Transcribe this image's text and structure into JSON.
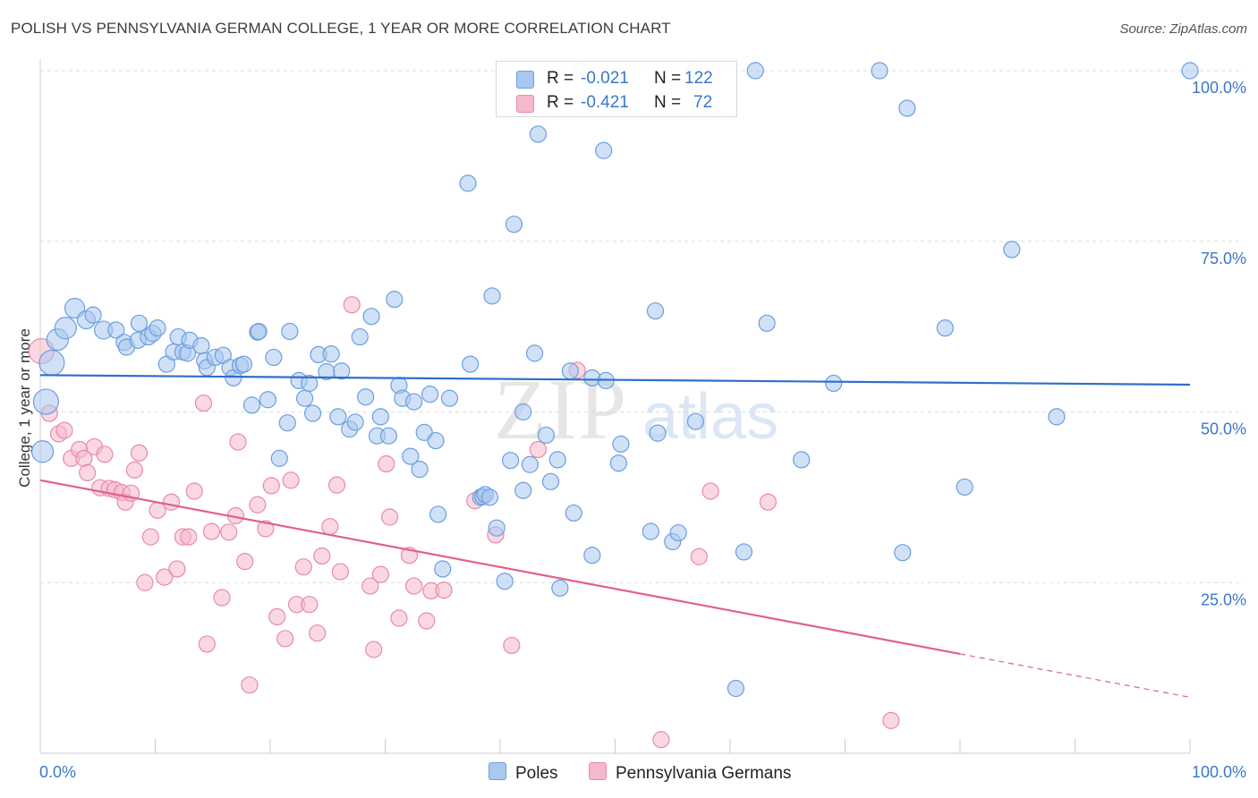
{
  "title": "POLISH VS PENNSYLVANIA GERMAN COLLEGE, 1 YEAR OR MORE CORRELATION CHART",
  "source": "Source: ZipAtlas.com",
  "watermark": {
    "zip": "ZIP",
    "atlas": "atlas"
  },
  "legend_top": {
    "rows": [
      {
        "r_label": "R =",
        "r_value": "-0.021",
        "n_label": "N =",
        "n_value": "122",
        "color": "#a9c8f0"
      },
      {
        "r_label": "R =",
        "r_value": "-0.421",
        "n_label": "N =",
        "n_value": "72",
        "color": "#f6b8cb"
      }
    ]
  },
  "legend_bottom": {
    "items": [
      {
        "label": "Poles",
        "color": "#a9c8f0"
      },
      {
        "label": "Pennsylvania Germans",
        "color": "#f6b8cb"
      }
    ]
  },
  "colors": {
    "poles_fill": "#a9c8f0",
    "poles_stroke": "#6b9ee0",
    "poles_line": "#2e6fcc",
    "pg_fill": "#f6b8cb",
    "pg_stroke": "#e88aa8",
    "pg_line": "#e0608c",
    "tick_text": "#3a78c9",
    "grid": "#dddddd"
  },
  "chart_data": {
    "type": "scatter",
    "title": "POLISH VS PENNSYLVANIA GERMAN COLLEGE, 1 YEAR OR MORE CORRELATION CHART",
    "xlabel": "",
    "ylabel": "College, 1 year or more",
    "xlim": [
      0,
      100
    ],
    "ylim": [
      0,
      100
    ],
    "x_tick_labels": [
      "0.0%",
      "100.0%"
    ],
    "y_tick_labels": [
      "25.0%",
      "50.0%",
      "75.0%",
      "100.0%"
    ],
    "y_ticks": [
      25,
      50,
      75,
      100
    ],
    "grid": true,
    "legend_position": "bottom",
    "series": [
      {
        "name": "Poles",
        "R": -0.021,
        "N": 122,
        "trend": {
          "x": [
            0,
            100
          ],
          "y": [
            55.4,
            54.0
          ],
          "dashed_from": null
        },
        "points": [
          [
            0.2,
            44.2,
            12
          ],
          [
            0.5,
            51.5,
            14
          ],
          [
            1.0,
            57.2,
            14
          ],
          [
            1.5,
            60.6,
            12
          ],
          [
            2.2,
            62.3,
            12
          ],
          [
            3.0,
            65.2,
            11
          ],
          [
            4.0,
            63.5,
            10
          ],
          [
            4.6,
            64.2,
            9
          ],
          [
            5.5,
            62.0,
            10
          ],
          [
            6.6,
            62.0,
            9
          ],
          [
            7.3,
            60.2,
            9
          ],
          [
            7.5,
            59.5,
            9
          ],
          [
            8.5,
            60.5,
            9
          ],
          [
            8.6,
            63.0,
            9
          ],
          [
            9.4,
            61.0,
            9
          ],
          [
            9.8,
            61.5,
            9
          ],
          [
            10.2,
            62.3,
            9
          ],
          [
            11.0,
            57.0,
            9
          ],
          [
            11.6,
            58.8,
            9
          ],
          [
            12.0,
            61.0,
            9
          ],
          [
            12.4,
            58.8,
            9
          ],
          [
            12.8,
            58.6,
            9
          ],
          [
            13.0,
            60.5,
            9
          ],
          [
            14.0,
            59.7,
            9
          ],
          [
            14.3,
            57.5,
            9
          ],
          [
            14.5,
            56.5,
            9
          ],
          [
            15.2,
            58.0,
            9
          ],
          [
            15.9,
            58.3,
            9
          ],
          [
            16.5,
            56.5,
            9
          ],
          [
            16.8,
            55.0,
            9
          ],
          [
            17.4,
            56.8,
            9
          ],
          [
            17.7,
            57.0,
            9
          ],
          [
            18.4,
            51.0,
            9
          ],
          [
            18.9,
            61.7,
            9
          ],
          [
            19.0,
            61.8,
            9
          ],
          [
            19.8,
            51.8,
            9
          ],
          [
            20.3,
            58.0,
            9
          ],
          [
            20.8,
            43.2,
            9
          ],
          [
            21.5,
            48.4,
            9
          ],
          [
            21.7,
            61.8,
            9
          ],
          [
            22.5,
            54.6,
            9
          ],
          [
            23.0,
            52.0,
            9
          ],
          [
            23.4,
            54.2,
            9
          ],
          [
            23.7,
            49.8,
            9
          ],
          [
            24.2,
            58.4,
            9
          ],
          [
            24.9,
            55.9,
            9
          ],
          [
            25.3,
            58.5,
            9
          ],
          [
            25.9,
            49.3,
            9
          ],
          [
            26.2,
            56.0,
            9
          ],
          [
            26.9,
            47.5,
            9
          ],
          [
            27.4,
            48.5,
            9
          ],
          [
            27.8,
            61.0,
            9
          ],
          [
            28.3,
            52.2,
            9
          ],
          [
            28.8,
            64.0,
            9
          ],
          [
            29.3,
            46.5,
            9
          ],
          [
            29.6,
            49.3,
            9
          ],
          [
            30.3,
            46.5,
            9
          ],
          [
            30.8,
            66.5,
            9
          ],
          [
            31.2,
            53.9,
            9
          ],
          [
            31.5,
            52.0,
            9
          ],
          [
            32.2,
            43.5,
            9
          ],
          [
            32.5,
            51.5,
            9
          ],
          [
            33.0,
            41.6,
            9
          ],
          [
            33.4,
            47.0,
            9
          ],
          [
            33.9,
            52.6,
            9
          ],
          [
            34.4,
            45.8,
            9
          ],
          [
            34.6,
            35.0,
            9
          ],
          [
            35.0,
            27.0,
            9
          ],
          [
            35.6,
            52.0,
            9
          ],
          [
            37.2,
            83.5,
            9
          ],
          [
            37.4,
            57.0,
            9
          ],
          [
            38.3,
            37.5,
            9
          ],
          [
            38.5,
            37.6,
            9
          ],
          [
            38.7,
            37.9,
            9
          ],
          [
            39.1,
            37.5,
            9
          ],
          [
            39.3,
            67.0,
            9
          ],
          [
            39.7,
            33.0,
            9
          ],
          [
            40.4,
            25.2,
            9
          ],
          [
            40.9,
            42.9,
            9
          ],
          [
            41.2,
            77.5,
            9
          ],
          [
            42.0,
            38.5,
            9
          ],
          [
            42.0,
            50.0,
            9
          ],
          [
            42.6,
            42.3,
            9
          ],
          [
            43.0,
            58.6,
            9
          ],
          [
            43.3,
            90.7,
            9
          ],
          [
            44.0,
            46.6,
            9
          ],
          [
            44.4,
            39.8,
            9
          ],
          [
            45.0,
            43.0,
            9
          ],
          [
            45.2,
            24.2,
            9
          ],
          [
            46.1,
            56.0,
            9
          ],
          [
            46.4,
            35.2,
            9
          ],
          [
            47.0,
            100.0,
            9
          ],
          [
            48.0,
            29.0,
            9
          ],
          [
            48.0,
            55.0,
            9
          ],
          [
            49.0,
            88.3,
            9
          ],
          [
            49.2,
            54.6,
            9
          ],
          [
            50.3,
            42.5,
            9
          ],
          [
            50.5,
            45.3,
            9
          ],
          [
            53.1,
            32.5,
            9
          ],
          [
            53.5,
            64.8,
            9
          ],
          [
            53.7,
            46.9,
            9
          ],
          [
            55.0,
            31.0,
            9
          ],
          [
            55.5,
            32.3,
            9
          ],
          [
            57.0,
            48.6,
            9
          ],
          [
            57.0,
            100.0,
            9
          ],
          [
            60.5,
            9.5,
            9
          ],
          [
            61.2,
            29.5,
            9
          ],
          [
            62.2,
            100.0,
            9
          ],
          [
            63.2,
            63.0,
            9
          ],
          [
            66.2,
            43.0,
            9
          ],
          [
            69.0,
            54.2,
            9
          ],
          [
            73.0,
            100.0,
            9
          ],
          [
            75.0,
            29.4,
            9
          ],
          [
            75.4,
            94.5,
            9
          ],
          [
            78.7,
            62.3,
            9
          ],
          [
            80.4,
            39.0,
            9
          ],
          [
            84.5,
            73.8,
            9
          ],
          [
            88.4,
            49.3,
            9
          ],
          [
            100.0,
            100.0,
            9
          ]
        ]
      },
      {
        "name": "Pennsylvania Germans",
        "R": -0.421,
        "N": 72,
        "trend": {
          "x": [
            0,
            100
          ],
          "y": [
            40.0,
            8.2
          ],
          "dashed_from": 80
        },
        "points": [
          [
            0.1,
            58.9,
            14
          ],
          [
            0.8,
            49.8,
            9
          ],
          [
            1.6,
            46.8,
            9
          ],
          [
            2.1,
            47.3,
            9
          ],
          [
            2.7,
            43.2,
            9
          ],
          [
            3.4,
            44.5,
            9
          ],
          [
            3.8,
            43.2,
            9
          ],
          [
            4.1,
            41.1,
            9
          ],
          [
            4.7,
            44.9,
            9
          ],
          [
            5.2,
            38.9,
            9
          ],
          [
            5.6,
            43.8,
            9
          ],
          [
            6.0,
            38.8,
            9
          ],
          [
            6.5,
            38.6,
            9
          ],
          [
            7.1,
            38.2,
            9
          ],
          [
            7.4,
            36.8,
            9
          ],
          [
            7.9,
            38.1,
            9
          ],
          [
            8.2,
            41.5,
            9
          ],
          [
            8.6,
            44.0,
            9
          ],
          [
            9.1,
            25.0,
            9
          ],
          [
            9.6,
            31.7,
            9
          ],
          [
            10.2,
            35.6,
            9
          ],
          [
            10.8,
            25.8,
            9
          ],
          [
            11.4,
            36.8,
            9
          ],
          [
            11.9,
            27.0,
            9
          ],
          [
            12.4,
            31.7,
            9
          ],
          [
            12.9,
            31.7,
            9
          ],
          [
            13.4,
            38.4,
            9
          ],
          [
            14.2,
            51.3,
            9
          ],
          [
            14.5,
            16.0,
            9
          ],
          [
            14.9,
            32.5,
            9
          ],
          [
            15.8,
            22.8,
            9
          ],
          [
            16.4,
            32.4,
            9
          ],
          [
            17.0,
            34.8,
            9
          ],
          [
            17.2,
            45.6,
            9
          ],
          [
            17.8,
            28.1,
            9
          ],
          [
            18.2,
            10.0,
            9
          ],
          [
            18.9,
            36.4,
            9
          ],
          [
            19.6,
            32.9,
            9
          ],
          [
            20.1,
            39.2,
            9
          ],
          [
            20.6,
            20.0,
            9
          ],
          [
            21.3,
            16.8,
            9
          ],
          [
            21.8,
            40.0,
            9
          ],
          [
            22.3,
            21.8,
            9
          ],
          [
            22.9,
            27.3,
            9
          ],
          [
            23.4,
            21.8,
            9
          ],
          [
            24.1,
            17.6,
            9
          ],
          [
            24.5,
            28.9,
            9
          ],
          [
            25.2,
            33.2,
            9
          ],
          [
            25.8,
            39.3,
            9
          ],
          [
            26.1,
            26.6,
            9
          ],
          [
            27.1,
            65.7,
            9
          ],
          [
            28.7,
            24.5,
            9
          ],
          [
            29.0,
            15.2,
            9
          ],
          [
            29.6,
            26.2,
            9
          ],
          [
            30.1,
            42.4,
            9
          ],
          [
            30.4,
            34.6,
            9
          ],
          [
            31.2,
            19.8,
            9
          ],
          [
            32.1,
            29.0,
            9
          ],
          [
            32.5,
            24.5,
            9
          ],
          [
            33.6,
            19.4,
            9
          ],
          [
            34.0,
            23.8,
            9
          ],
          [
            35.1,
            23.9,
            9
          ],
          [
            37.8,
            37.0,
            9
          ],
          [
            39.6,
            32.0,
            9
          ],
          [
            41.0,
            15.8,
            9
          ],
          [
            43.3,
            44.5,
            9
          ],
          [
            46.7,
            56.1,
            9
          ],
          [
            57.3,
            28.8,
            9
          ],
          [
            58.3,
            38.4,
            9
          ],
          [
            63.3,
            36.8,
            9
          ],
          [
            74.0,
            4.8,
            9
          ],
          [
            54.0,
            2.0,
            9
          ]
        ]
      }
    ]
  }
}
